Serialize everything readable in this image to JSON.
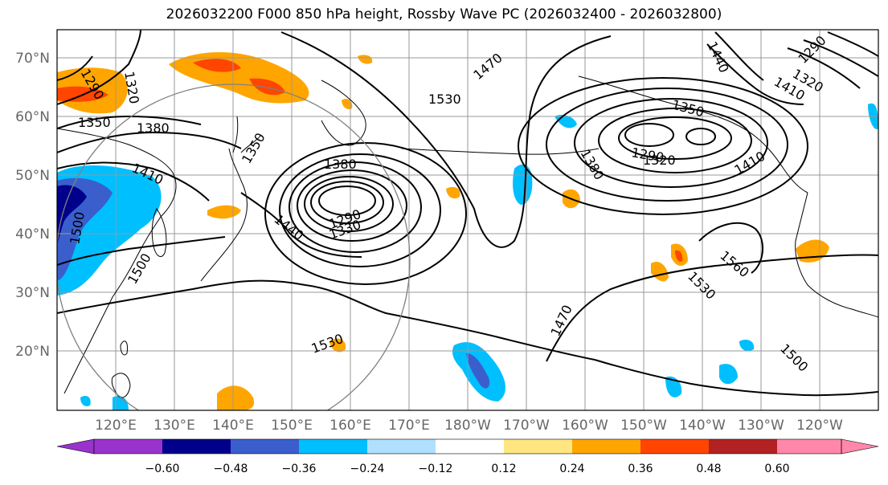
{
  "title": "2026032200 F000 850 hPa height, Rossby Wave PC (2026032400 - 2026032800)",
  "lat_labels": [
    "70°N",
    "60°N",
    "50°N",
    "40°N",
    "30°N",
    "20°N"
  ],
  "lon_labels": [
    "120°E",
    "130°E",
    "140°E",
    "150°E",
    "160°E",
    "170°E",
    "180°W",
    "170°W",
    "160°W",
    "150°W",
    "140°W",
    "130°W",
    "120°W"
  ],
  "contour_labels": [
    "1290",
    "1320",
    "1350",
    "1380",
    "1410",
    "1500",
    "1500",
    "1350",
    "1380",
    "1290",
    "1330",
    "1440",
    "1470",
    "1530",
    "1530",
    "1470",
    "1350",
    "1290",
    "1320",
    "1380",
    "1410",
    "1440",
    "1410",
    "1320",
    "1290",
    "1560",
    "1530",
    "1500"
  ],
  "colorbar": {
    "ticks": [
      "−0.60",
      "−0.48",
      "−0.36",
      "−0.24",
      "−0.12",
      "0.12",
      "0.24",
      "0.36",
      "0.48",
      "0.60"
    ],
    "colors": [
      "#9933cc",
      "#00008b",
      "#3a5fcd",
      "#00bfff",
      "#b0e0ff",
      "#ffffff",
      "#ffe680",
      "#ffa500",
      "#ff4500",
      "#b22222",
      "#ff88aa"
    ]
  },
  "colors": {
    "negative_strong": "#3a5fcd",
    "negative_mid": "#00bfff",
    "positive_mid": "#ffa500",
    "positive_strong": "#ff4500",
    "contour": "#000000",
    "grid": "#999999"
  }
}
